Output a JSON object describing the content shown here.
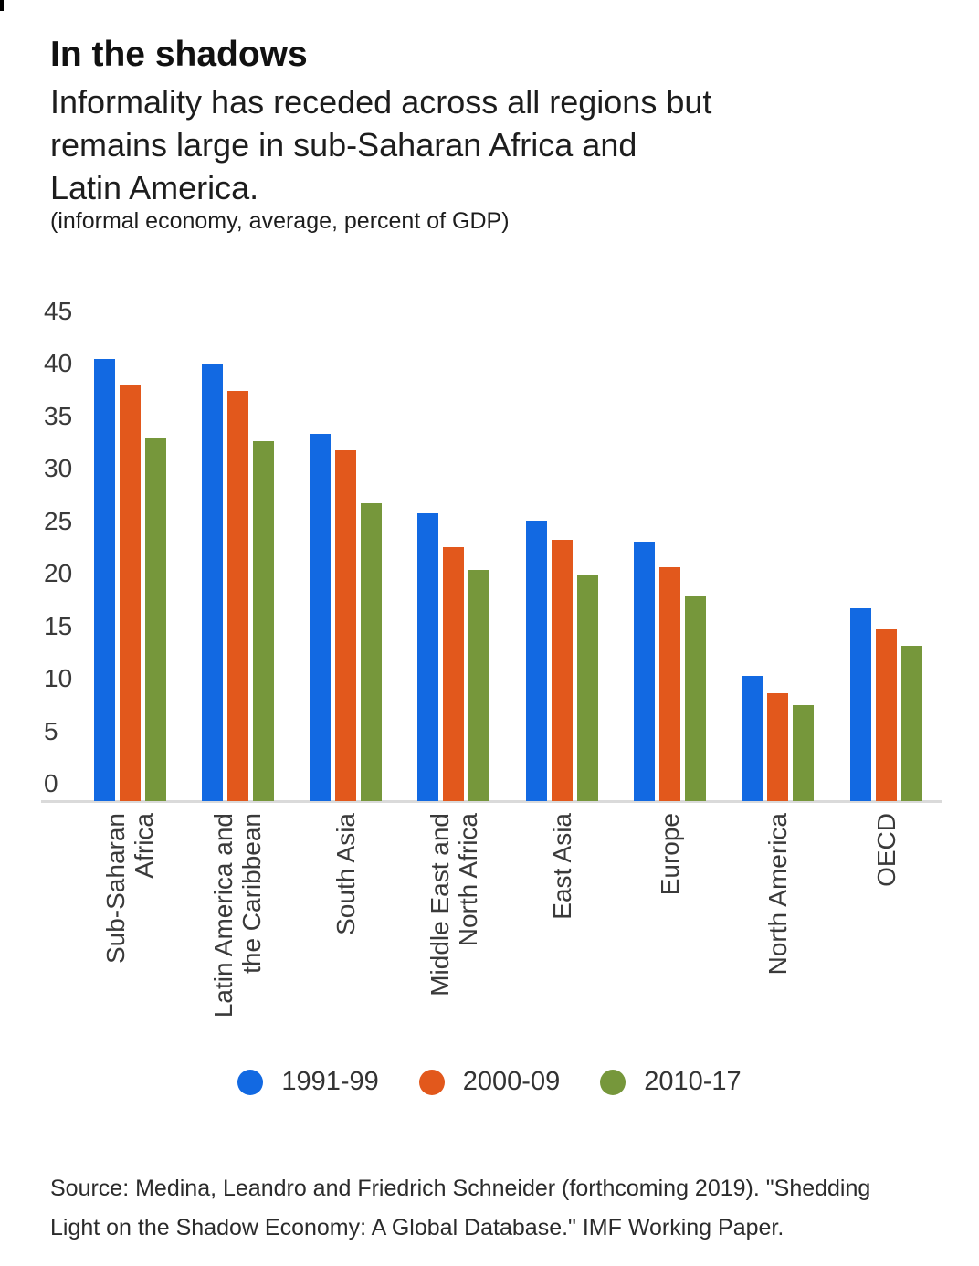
{
  "header": {
    "title": "In the shadows",
    "subtitle": "Informality has receded across all regions but\nremains large in sub-Saharan Africa and\nLatin America.",
    "note": "(informal economy, average, percent of GDP)"
  },
  "chart_data": {
    "type": "bar",
    "title": "In the shadows",
    "subtitle": "Informality has receded across all regions but remains large in sub-Saharan Africa and Latin America.",
    "ylabel": "informal economy, average, percent of GDP",
    "xlabel": "",
    "ylim": [
      0,
      45
    ],
    "ytick_step": 5,
    "grid": false,
    "legend_position": "bottom",
    "categories": [
      "Sub-Saharan Africa",
      "Latin America and the Caribbean",
      "South Asia",
      "Middle East and North Africa",
      "East Asia",
      "Europe",
      "North America",
      "OECD"
    ],
    "category_label_lines": [
      [
        "Sub-Saharan",
        "Africa"
      ],
      [
        "Latin America and",
        "the Caribbean"
      ],
      [
        "South Asia"
      ],
      [
        "Middle East and",
        "North Africa"
      ],
      [
        "East Asia"
      ],
      [
        "Europe"
      ],
      [
        "North America"
      ],
      [
        "OECD"
      ]
    ],
    "series": [
      {
        "name": "1991-99",
        "color": "#1269E2",
        "values": [
          40.5,
          40.0,
          33.3,
          25.8,
          25.1,
          23.1,
          10.3,
          16.7
        ]
      },
      {
        "name": "2000-09",
        "color": "#E2581C",
        "values": [
          38.0,
          37.4,
          31.8,
          22.5,
          23.2,
          20.6,
          8.6,
          14.7
        ]
      },
      {
        "name": "2010-17",
        "color": "#76973B",
        "values": [
          33.0,
          32.6,
          26.7,
          20.4,
          19.8,
          17.9,
          7.5,
          13.1
        ]
      }
    ]
  },
  "source": {
    "text": "Source: Medina, Leandro and Friedrich Schneider (forthcoming 2019). \"Shedding\nLight on the Shadow Economy: A Global Database.\" IMF Working Paper."
  }
}
